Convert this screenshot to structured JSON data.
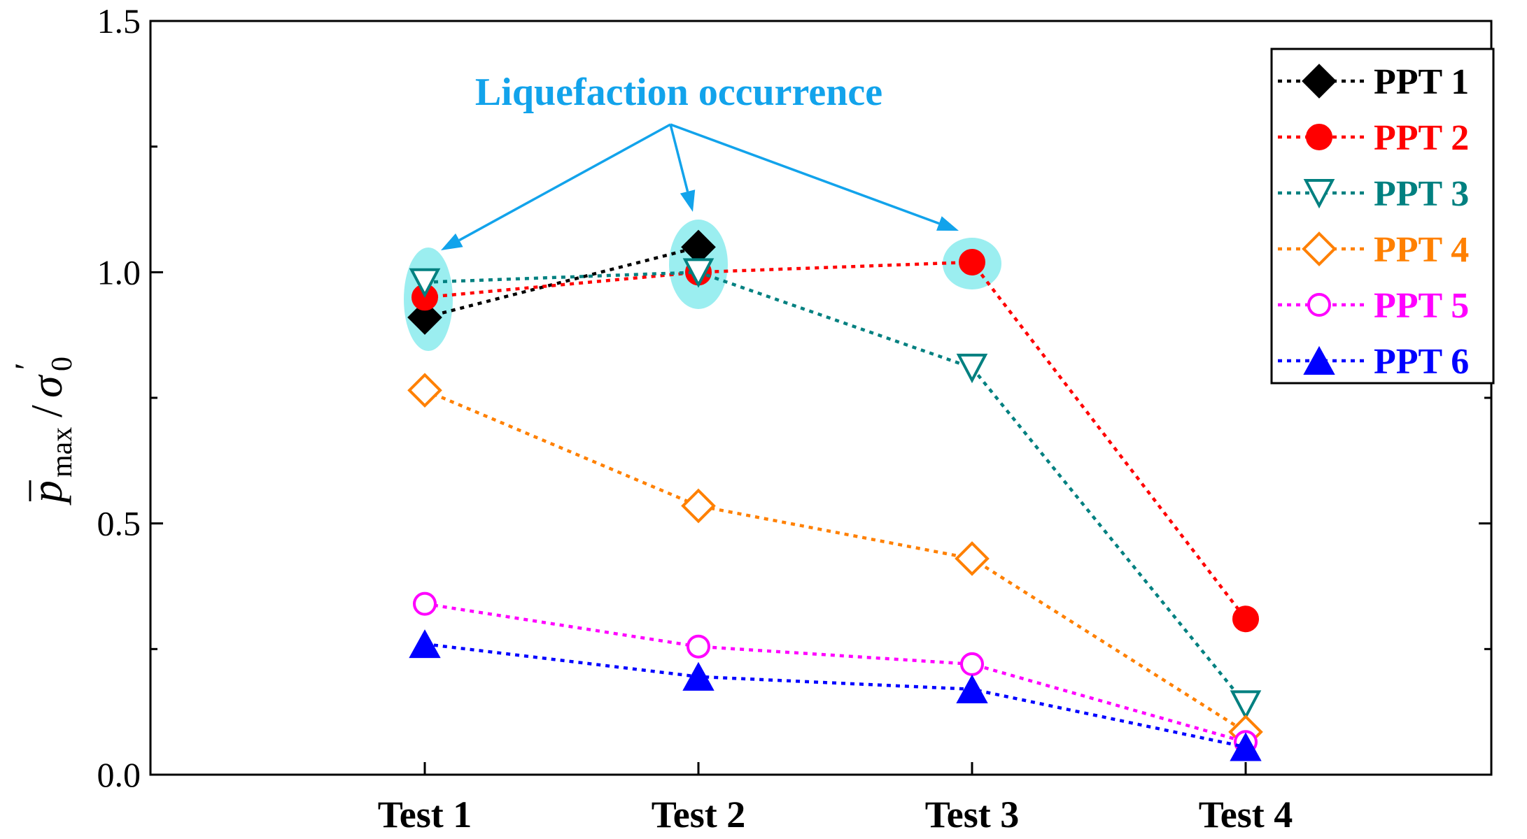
{
  "colors": {
    "PPT 1": "#000000",
    "PPT 2": "#ff0000",
    "PPT 3": "#008080",
    "PPT 4": "#ff8000",
    "PPT 5": "#ff00ff",
    "PPT 6": "#0000ff",
    "annotation": "#12a3eb",
    "highlight": "#9beef0"
  },
  "chart_data": {
    "type": "line",
    "categories": [
      "Test 1",
      "Test 2",
      "Test 3",
      "Test 4"
    ],
    "ylim": [
      0.0,
      1.5
    ],
    "yticks": [
      "0.0",
      "0.5",
      "1.0",
      "1.5"
    ],
    "ylabel": {
      "base": "p",
      "sub": "max",
      "denom": "σ",
      "denom_sub": "0",
      "prime": "′"
    },
    "series": [
      {
        "name": "PPT 1",
        "marker": "diamond-filled",
        "values": [
          0.91,
          1.05,
          null,
          null
        ]
      },
      {
        "name": "PPT 2",
        "marker": "circle-filled",
        "values": [
          0.95,
          1.0,
          1.02,
          0.31
        ]
      },
      {
        "name": "PPT 3",
        "marker": "triangle-down-open",
        "values": [
          0.98,
          1.0,
          0.81,
          0.14
        ]
      },
      {
        "name": "PPT 4",
        "marker": "diamond-open",
        "values": [
          0.765,
          0.535,
          0.43,
          0.085
        ]
      },
      {
        "name": "PPT 5",
        "marker": "circle-open",
        "values": [
          0.34,
          0.255,
          0.22,
          0.065
        ]
      },
      {
        "name": "PPT 6",
        "marker": "triangle-up-filled",
        "values": [
          0.26,
          0.195,
          0.17,
          0.055
        ]
      }
    ],
    "annotation": {
      "text": "Liquefaction occurrence",
      "targets": [
        "Test 1",
        "Test 2",
        "Test 3"
      ]
    },
    "legend_position": "top-right"
  }
}
